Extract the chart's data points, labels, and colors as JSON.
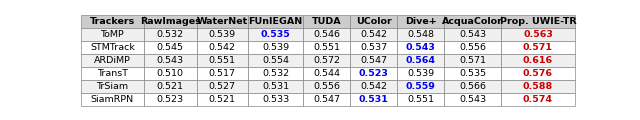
{
  "headers": [
    "Trackers",
    "RawImages",
    "WaterNet",
    "FUnIEGAN",
    "TUDA",
    "UColor",
    "Dive+",
    "AcquaColor",
    "Prop. UWIE-TR"
  ],
  "rows": [
    [
      "ToMP",
      "0.532",
      "0.539",
      "0.535",
      "0.546",
      "0.542",
      "0.548",
      "0.543",
      "0.563"
    ],
    [
      "STMTrack",
      "0.545",
      "0.542",
      "0.539",
      "0.551",
      "0.537",
      "0.543",
      "0.556",
      "0.571"
    ],
    [
      "ARDiMP",
      "0.543",
      "0.551",
      "0.554",
      "0.572",
      "0.547",
      "0.564",
      "0.571",
      "0.616"
    ],
    [
      "TransT",
      "0.510",
      "0.517",
      "0.532",
      "0.544",
      "0.523",
      "0.539",
      "0.535",
      "0.576"
    ],
    [
      "TrSiam",
      "0.521",
      "0.527",
      "0.531",
      "0.556",
      "0.542",
      "0.559",
      "0.566",
      "0.588"
    ],
    [
      "SiamRPN",
      "0.523",
      "0.521",
      "0.533",
      "0.547",
      "0.531",
      "0.551",
      "0.543",
      "0.574"
    ]
  ],
  "blue_cells": {
    "0": [
      4
    ],
    "1": [
      7
    ],
    "2": [
      7
    ],
    "3": [
      6
    ],
    "4": [
      7
    ],
    "5": [
      6
    ]
  },
  "red_cells": {
    "0": [
      9
    ],
    "1": [
      9
    ],
    "2": [
      9
    ],
    "3": [
      9
    ],
    "4": [
      9
    ],
    "5": [
      9
    ]
  },
  "header_bg": "#cccccc",
  "row_bg_even": "#f0f0f0",
  "row_bg_odd": "#ffffff",
  "border_color": "#888888",
  "text_color": "#000000",
  "blue_color": "#0000ee",
  "red_color": "#cc0000",
  "font_size": 6.8
}
